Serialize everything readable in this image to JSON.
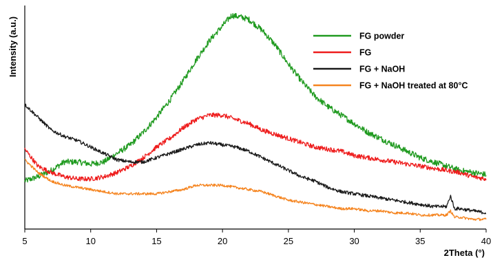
{
  "chart_data": {
    "type": "line",
    "xlabel": "2Theta (°)",
    "ylabel": "Intensity (a.u.)",
    "xlim": [
      5,
      40
    ],
    "ylim": [
      0,
      100
    ],
    "x_ticks": [
      5,
      10,
      15,
      20,
      25,
      30,
      35,
      40
    ],
    "y_ticks_labeled": false,
    "grid": false,
    "legend_position": "top-right",
    "series": [
      {
        "name": "FG powder",
        "color": "#1f9a1f",
        "points": [
          [
            5,
            20
          ],
          [
            6,
            22
          ],
          [
            7,
            25
          ],
          [
            8,
            29
          ],
          [
            9,
            29
          ],
          [
            10,
            28
          ],
          [
            11,
            29
          ],
          [
            12,
            33
          ],
          [
            13,
            37
          ],
          [
            14,
            43
          ],
          [
            15,
            50
          ],
          [
            16,
            58
          ],
          [
            17,
            67
          ],
          [
            18,
            77
          ],
          [
            19,
            86
          ],
          [
            20,
            93
          ],
          [
            20.7,
            98
          ],
          [
            21.5,
            97
          ],
          [
            22,
            96
          ],
          [
            23,
            91
          ],
          [
            24,
            84
          ],
          [
            25,
            75
          ],
          [
            26,
            67
          ],
          [
            27,
            60
          ],
          [
            28,
            55
          ],
          [
            29,
            51
          ],
          [
            30,
            47
          ],
          [
            31,
            43
          ],
          [
            32,
            40
          ],
          [
            33,
            37
          ],
          [
            34,
            34
          ],
          [
            35,
            31
          ],
          [
            36,
            29
          ],
          [
            37,
            27
          ],
          [
            38,
            25
          ],
          [
            39,
            24
          ],
          [
            40,
            23
          ]
        ]
      },
      {
        "name": "FG",
        "color": "#ee1c1c",
        "points": [
          [
            5,
            35
          ],
          [
            6,
            27
          ],
          [
            7,
            24
          ],
          [
            8,
            22
          ],
          [
            9,
            21
          ],
          [
            10,
            21
          ],
          [
            11,
            22
          ],
          [
            12,
            24
          ],
          [
            13,
            27
          ],
          [
            14,
            31
          ],
          [
            15,
            36
          ],
          [
            16,
            40
          ],
          [
            17,
            45
          ],
          [
            18,
            49
          ],
          [
            19,
            51
          ],
          [
            20,
            51
          ],
          [
            21,
            49
          ],
          [
            22,
            47
          ],
          [
            23,
            44
          ],
          [
            24,
            42
          ],
          [
            25,
            40
          ],
          [
            26,
            38
          ],
          [
            27,
            36
          ],
          [
            28,
            35
          ],
          [
            29,
            34
          ],
          [
            30,
            32
          ],
          [
            31,
            31
          ],
          [
            32,
            30
          ],
          [
            33,
            29
          ],
          [
            34,
            28
          ],
          [
            35,
            27
          ],
          [
            36,
            26
          ],
          [
            37,
            25
          ],
          [
            38,
            24
          ],
          [
            39,
            22
          ],
          [
            40,
            21
          ]
        ]
      },
      {
        "name": "FG + NaOH",
        "color": "#1a1a1a",
        "points": [
          [
            5,
            56
          ],
          [
            6,
            50
          ],
          [
            7,
            44
          ],
          [
            8,
            41
          ],
          [
            9,
            39
          ],
          [
            10,
            36
          ],
          [
            11,
            33
          ],
          [
            12,
            30
          ],
          [
            13,
            29
          ],
          [
            14,
            29
          ],
          [
            15,
            31
          ],
          [
            16,
            33
          ],
          [
            17,
            35
          ],
          [
            18,
            37
          ],
          [
            19,
            38
          ],
          [
            20,
            37
          ],
          [
            21,
            36
          ],
          [
            22,
            34
          ],
          [
            23,
            31
          ],
          [
            24,
            28
          ],
          [
            25,
            25
          ],
          [
            26,
            22
          ],
          [
            27,
            20
          ],
          [
            28,
            17
          ],
          [
            29,
            15
          ],
          [
            30,
            14
          ],
          [
            31,
            13
          ],
          [
            32,
            12
          ],
          [
            33,
            11
          ],
          [
            34,
            10
          ],
          [
            35,
            9
          ],
          [
            36,
            8
          ],
          [
            37,
            8
          ],
          [
            37.3,
            13
          ],
          [
            37.6,
            7
          ],
          [
            38,
            7
          ],
          [
            39,
            6
          ],
          [
            40,
            5
          ]
        ]
      },
      {
        "name": "FG + NaOH treated at 80°C",
        "color": "#f5841f",
        "points": [
          [
            5,
            30
          ],
          [
            6,
            24
          ],
          [
            7,
            20
          ],
          [
            8,
            18
          ],
          [
            9,
            17
          ],
          [
            10,
            16
          ],
          [
            11,
            15
          ],
          [
            12,
            14
          ],
          [
            13,
            14
          ],
          [
            14,
            14
          ],
          [
            15,
            14
          ],
          [
            16,
            15
          ],
          [
            17,
            16
          ],
          [
            18,
            18
          ],
          [
            19,
            18
          ],
          [
            20,
            18
          ],
          [
            21,
            17
          ],
          [
            22,
            16
          ],
          [
            23,
            15
          ],
          [
            24,
            13
          ],
          [
            25,
            11
          ],
          [
            26,
            10
          ],
          [
            27,
            9
          ],
          [
            28,
            8
          ],
          [
            29,
            7
          ],
          [
            30,
            7
          ],
          [
            31,
            6
          ],
          [
            32,
            6
          ],
          [
            33,
            5
          ],
          [
            34,
            5
          ],
          [
            35,
            4
          ],
          [
            36,
            4
          ],
          [
            37,
            4
          ],
          [
            37.3,
            6
          ],
          [
            37.6,
            3
          ],
          [
            38,
            3
          ],
          [
            39,
            2
          ],
          [
            40,
            2
          ]
        ]
      }
    ]
  }
}
